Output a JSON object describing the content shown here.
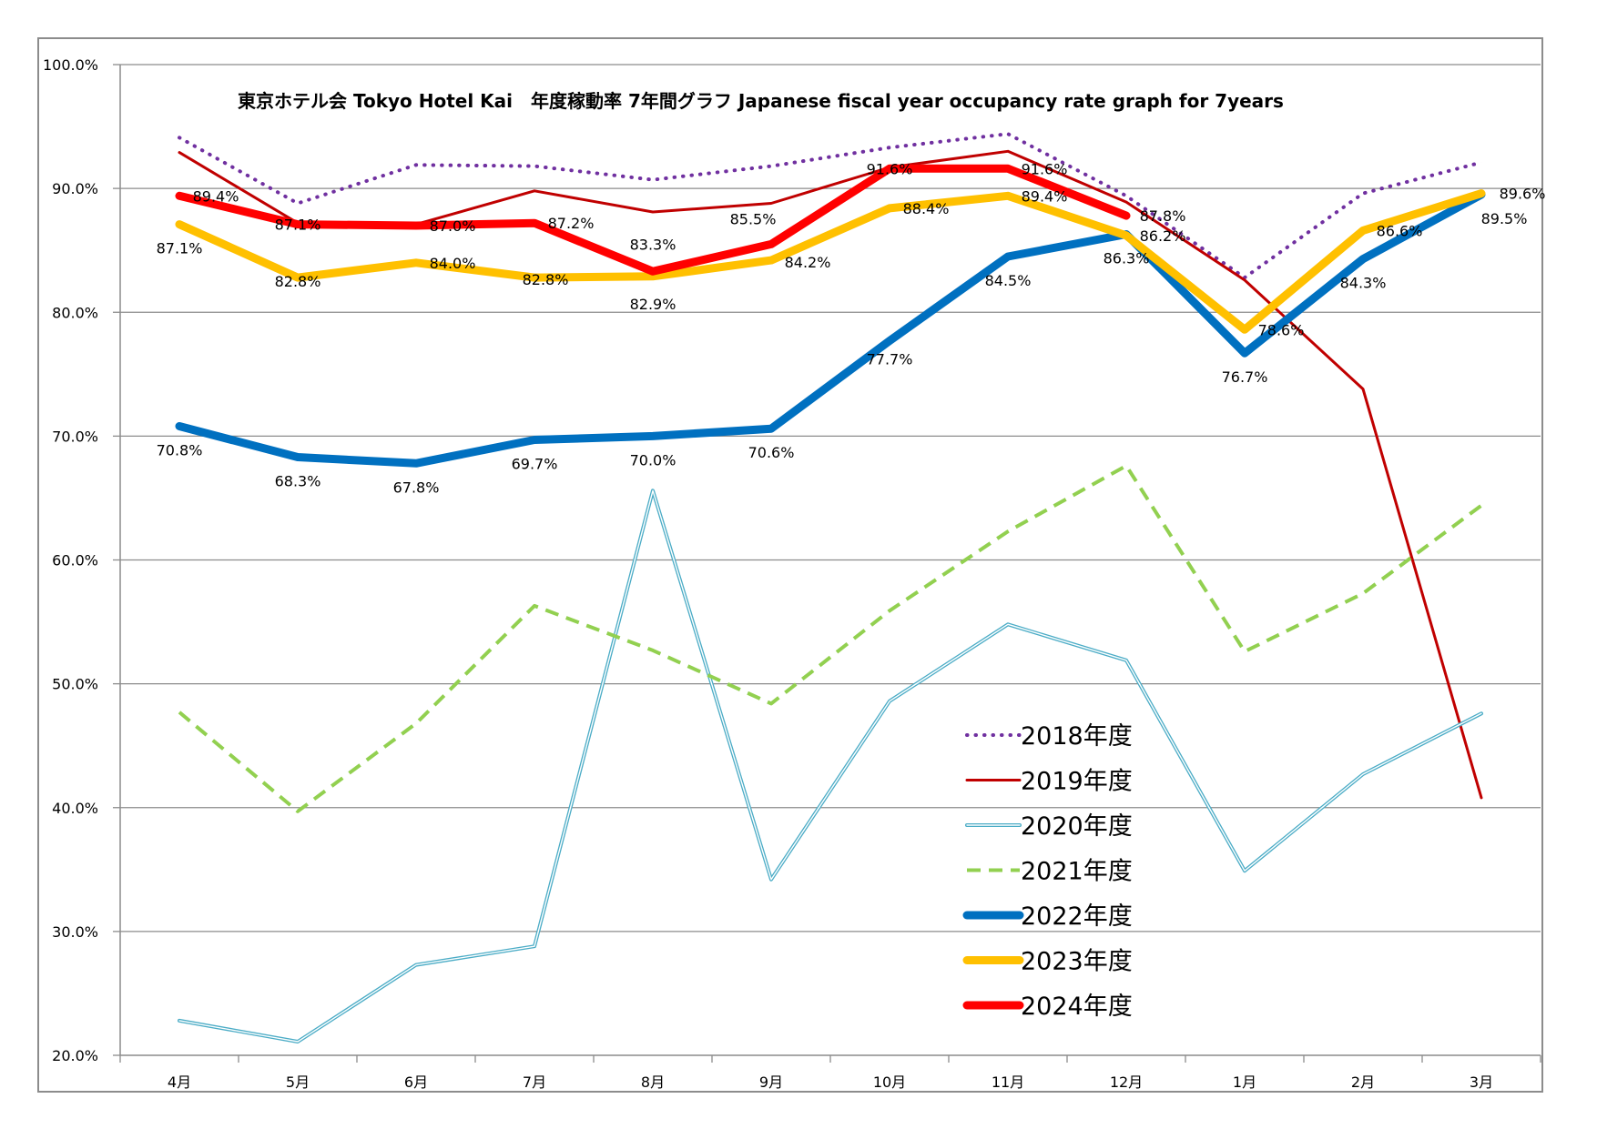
{
  "chart_data": {
    "type": "line",
    "title": "東京ホテル会 Tokyo Hotel Kai　年度稼動率 7年間グラフ Japanese fiscal year occupancy rate graph for 7years",
    "xlabel": "",
    "ylabel": "",
    "categories": [
      "4月",
      "5月",
      "6月",
      "7月",
      "8月",
      "9月",
      "10月",
      "11月",
      "12月",
      "1月",
      "2月",
      "3月"
    ],
    "ylim": [
      20.0,
      100.0
    ],
    "yticks": [
      "20.0%",
      "30.0%",
      "40.0%",
      "50.0%",
      "60.0%",
      "70.0%",
      "80.0%",
      "90.0%",
      "100.0%"
    ],
    "ytick_values": [
      20,
      30,
      40,
      50,
      60,
      70,
      80,
      90,
      100
    ],
    "grid": true,
    "legend_position": "bottom-right inside plot",
    "series": [
      {
        "name": "2018年度",
        "color": "#7030a0",
        "style": "dotted",
        "width": 4,
        "values": [
          94.1,
          88.8,
          91.9,
          91.8,
          90.7,
          91.8,
          93.3,
          94.4,
          89.4,
          82.8,
          89.6,
          92.1
        ],
        "labels": []
      },
      {
        "name": "2019年度",
        "color": "#c00000",
        "style": "solid",
        "width": 3,
        "values": [
          92.9,
          87.2,
          87.1,
          89.8,
          88.1,
          88.8,
          91.7,
          93.0,
          88.9,
          82.6,
          73.8,
          40.8
        ],
        "labels": []
      },
      {
        "name": "2020年度",
        "color": "#4bacc6",
        "style": "double",
        "width": 4,
        "values": [
          22.8,
          21.1,
          27.3,
          28.8,
          65.6,
          34.2,
          48.6,
          54.8,
          51.9,
          34.9,
          42.7,
          47.6
        ],
        "labels": []
      },
      {
        "name": "2021年度",
        "color": "#92d050",
        "style": "dashed",
        "width": 4,
        "values": [
          47.7,
          39.7,
          46.8,
          56.3,
          52.7,
          48.4,
          55.9,
          62.3,
          67.6,
          52.6,
          57.3,
          64.4
        ],
        "labels": []
      },
      {
        "name": "2022年度",
        "color": "#0070c0",
        "style": "solid",
        "width": 9,
        "values": [
          70.8,
          68.3,
          67.8,
          69.7,
          70.0,
          70.6,
          77.7,
          84.5,
          86.3,
          76.7,
          84.3,
          89.5
        ],
        "labels": [
          "70.8%",
          "68.3%",
          "67.8%",
          "69.7%",
          "70.0%",
          "70.6%",
          "77.7%",
          "84.5%",
          "86.3%",
          "76.7%",
          "84.3%",
          "89.5%"
        ]
      },
      {
        "name": "2023年度",
        "color": "#ffc000",
        "style": "solid",
        "width": 9,
        "values": [
          87.1,
          82.8,
          84.0,
          82.8,
          82.9,
          84.2,
          88.4,
          89.4,
          86.2,
          78.6,
          86.6,
          89.6
        ],
        "labels": [
          "87.1%",
          "82.8%",
          "84.0%",
          "82.8%",
          "82.9%",
          "84.2%",
          "88.4%",
          "89.4%",
          "86.2%",
          "78.6%",
          "86.6%",
          "89.6%"
        ]
      },
      {
        "name": "2024年度",
        "color": "#ff0000",
        "style": "solid",
        "width": 9,
        "values": [
          89.4,
          87.1,
          87.0,
          87.2,
          83.3,
          85.5,
          91.6,
          91.6,
          87.8,
          null,
          null,
          null
        ],
        "labels": [
          "89.4%",
          "87.1%",
          "87.0%",
          "87.2%",
          "83.3%",
          "85.5%",
          "91.6%",
          "91.6%",
          "87.8%",
          null,
          null,
          null
        ]
      }
    ]
  }
}
